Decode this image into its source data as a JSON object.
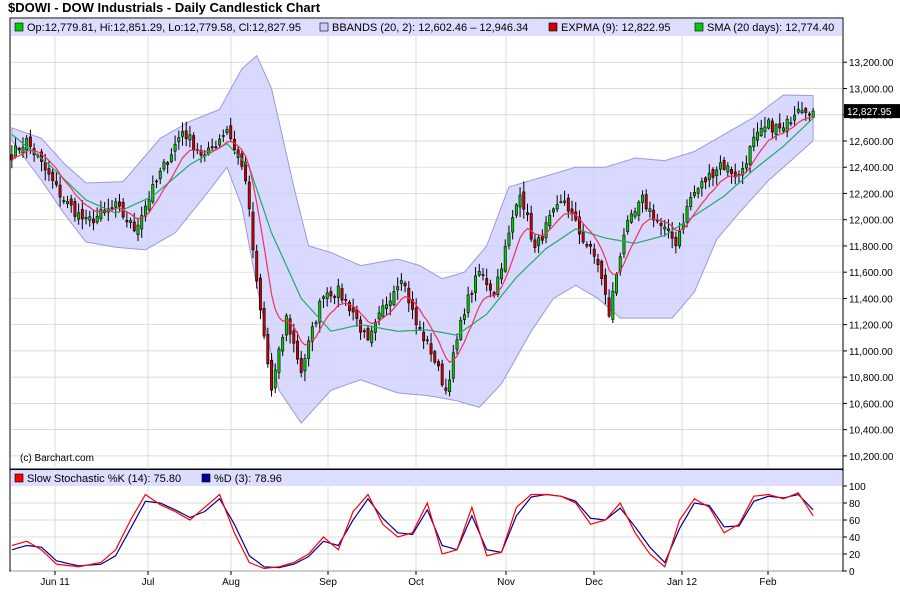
{
  "title": "$DOWI - DOW Industrials - Daily Candlestick Chart",
  "watermark": "(c) Barchart.com",
  "last_price_label": "12,827.95",
  "legends": {
    "ohlc": "Op:12,779.81, Hi:12,851.29, Lo:12,779.58, Cl:12,827.95",
    "bbands": "BBANDS (20, 2): 12,602.46 – 12,946.34",
    "expma": "EXPMA (9): 12,822.95",
    "sma": "SMA (20 days): 12,774.40",
    "stoch_k": "Slow Stochastic %K (14): 75.80",
    "stoch_d": "%D (3): 78.96"
  },
  "colors": {
    "up": "#00cc00",
    "down": "#cc0000",
    "band_fill": "#ccccff",
    "band_edge": "#9999dd",
    "expma": "#ee3355",
    "sma": "#22aa66",
    "stoch_k": "#ff0000",
    "stoch_d": "#000099"
  },
  "chart_data": [
    {
      "type": "candlestick",
      "y_axis_side": "right",
      "ylim": [
        10100,
        13400
      ],
      "y_ticks": [
        "13,200.00",
        "13,000.00",
        "12,800.00",
        "12,600.00",
        "12,400.00",
        "12,200.00",
        "12,000.00",
        "11,800.00",
        "11,600.00",
        "11,400.00",
        "11,200.00",
        "11,000.00",
        "10,800.00",
        "10,600.00",
        "10,400.00",
        "10,200.00"
      ],
      "x_ticks": [
        "Jun 11",
        "Jul",
        "Aug",
        "Sep",
        "Oct",
        "Nov",
        "Dec",
        "Jan 12",
        "Feb"
      ],
      "close_anchors": [
        [
          0,
          12500
        ],
        [
          4,
          12600
        ],
        [
          8,
          12420
        ],
        [
          14,
          12150
        ],
        [
          20,
          11980
        ],
        [
          28,
          12100
        ],
        [
          33,
          11930
        ],
        [
          40,
          12350
        ],
        [
          46,
          12680
        ],
        [
          52,
          12470
        ],
        [
          58,
          12700
        ],
        [
          63,
          12320
        ],
        [
          66,
          11500
        ],
        [
          70,
          10700
        ],
        [
          74,
          11250
        ],
        [
          78,
          10850
        ],
        [
          84,
          11450
        ],
        [
          88,
          11450
        ],
        [
          92,
          11300
        ],
        [
          96,
          11050
        ],
        [
          100,
          11320
        ],
        [
          105,
          11580
        ],
        [
          109,
          11200
        ],
        [
          113,
          11000
        ],
        [
          117,
          10700
        ],
        [
          122,
          11320
        ],
        [
          126,
          11600
        ],
        [
          130,
          11450
        ],
        [
          134,
          11880
        ],
        [
          137,
          12230
        ],
        [
          141,
          11770
        ],
        [
          145,
          12000
        ],
        [
          149,
          12150
        ],
        [
          153,
          11900
        ],
        [
          158,
          11670
        ],
        [
          161,
          11280
        ],
        [
          165,
          11900
        ],
        [
          170,
          12150
        ],
        [
          175,
          11950
        ],
        [
          179,
          11830
        ],
        [
          183,
          12170
        ],
        [
          187,
          12300
        ],
        [
          191,
          12430
        ],
        [
          196,
          12330
        ],
        [
          200,
          12600
        ],
        [
          204,
          12720
        ],
        [
          208,
          12680
        ],
        [
          212,
          12880
        ],
        [
          216,
          12828
        ]
      ],
      "sma_anchors": [
        [
          0,
          12650
        ],
        [
          10,
          12420
        ],
        [
          20,
          12150
        ],
        [
          28,
          12050
        ],
        [
          38,
          12180
        ],
        [
          48,
          12420
        ],
        [
          58,
          12580
        ],
        [
          64,
          12400
        ],
        [
          70,
          11900
        ],
        [
          78,
          11400
        ],
        [
          86,
          11150
        ],
        [
          94,
          11200
        ],
        [
          104,
          11150
        ],
        [
          112,
          11160
        ],
        [
          120,
          11120
        ],
        [
          128,
          11280
        ],
        [
          136,
          11560
        ],
        [
          144,
          11780
        ],
        [
          152,
          11930
        ],
        [
          160,
          11860
        ],
        [
          168,
          11820
        ],
        [
          176,
          11880
        ],
        [
          184,
          12030
        ],
        [
          192,
          12180
        ],
        [
          200,
          12380
        ],
        [
          208,
          12560
        ],
        [
          216,
          12774
        ]
      ],
      "bbands_upper_anchors": [
        [
          0,
          12700
        ],
        [
          8,
          12620
        ],
        [
          14,
          12430
        ],
        [
          20,
          12280
        ],
        [
          30,
          12290
        ],
        [
          40,
          12620
        ],
        [
          48,
          12750
        ],
        [
          56,
          12840
        ],
        [
          62,
          13150
        ],
        [
          66,
          13250
        ],
        [
          70,
          13000
        ],
        [
          76,
          12250
        ],
        [
          80,
          11800
        ],
        [
          86,
          11750
        ],
        [
          94,
          11650
        ],
        [
          104,
          11700
        ],
        [
          110,
          11650
        ],
        [
          116,
          11550
        ],
        [
          122,
          11600
        ],
        [
          128,
          11800
        ],
        [
          134,
          12250
        ],
        [
          140,
          12300
        ],
        [
          146,
          12350
        ],
        [
          152,
          12400
        ],
        [
          160,
          12400
        ],
        [
          168,
          12470
        ],
        [
          176,
          12450
        ],
        [
          184,
          12520
        ],
        [
          192,
          12650
        ],
        [
          200,
          12780
        ],
        [
          208,
          12950
        ],
        [
          216,
          12946
        ]
      ],
      "bbands_lower_anchors": [
        [
          0,
          12600
        ],
        [
          8,
          12300
        ],
        [
          14,
          12050
        ],
        [
          20,
          11830
        ],
        [
          28,
          11790
        ],
        [
          36,
          11770
        ],
        [
          44,
          11900
        ],
        [
          52,
          12180
        ],
        [
          58,
          12400
        ],
        [
          62,
          12100
        ],
        [
          66,
          11500
        ],
        [
          72,
          10700
        ],
        [
          78,
          10450
        ],
        [
          86,
          10700
        ],
        [
          94,
          10780
        ],
        [
          104,
          10680
        ],
        [
          112,
          10660
        ],
        [
          120,
          10620
        ],
        [
          126,
          10570
        ],
        [
          132,
          10750
        ],
        [
          140,
          11150
        ],
        [
          146,
          11400
        ],
        [
          152,
          11500
        ],
        [
          158,
          11400
        ],
        [
          164,
          11250
        ],
        [
          170,
          11250
        ],
        [
          178,
          11250
        ],
        [
          184,
          11450
        ],
        [
          190,
          11850
        ],
        [
          196,
          12050
        ],
        [
          204,
          12300
        ],
        [
          210,
          12450
        ],
        [
          216,
          12602
        ]
      ]
    },
    {
      "type": "line",
      "ylim": [
        0,
        100
      ],
      "y_ticks": [
        "100",
        "80",
        "60",
        "40",
        "20",
        "0"
      ],
      "series": [
        {
          "name": "%K",
          "anchors": [
            [
              0,
              30
            ],
            [
              4,
              35
            ],
            [
              8,
              25
            ],
            [
              12,
              8
            ],
            [
              18,
              5
            ],
            [
              24,
              10
            ],
            [
              28,
              25
            ],
            [
              32,
              60
            ],
            [
              36,
              90
            ],
            [
              40,
              78
            ],
            [
              44,
              70
            ],
            [
              48,
              60
            ],
            [
              52,
              75
            ],
            [
              56,
              90
            ],
            [
              60,
              45
            ],
            [
              64,
              10
            ],
            [
              68,
              3
            ],
            [
              72,
              5
            ],
            [
              76,
              10
            ],
            [
              80,
              20
            ],
            [
              84,
              40
            ],
            [
              88,
              25
            ],
            [
              92,
              70
            ],
            [
              96,
              90
            ],
            [
              100,
              55
            ],
            [
              104,
              40
            ],
            [
              108,
              45
            ],
            [
              112,
              80
            ],
            [
              116,
              20
            ],
            [
              120,
              25
            ],
            [
              124,
              75
            ],
            [
              128,
              18
            ],
            [
              132,
              22
            ],
            [
              136,
              75
            ],
            [
              140,
              90
            ],
            [
              144,
              90
            ],
            [
              148,
              88
            ],
            [
              152,
              80
            ],
            [
              156,
              55
            ],
            [
              160,
              60
            ],
            [
              164,
              80
            ],
            [
              168,
              45
            ],
            [
              172,
              20
            ],
            [
              176,
              5
            ],
            [
              180,
              60
            ],
            [
              184,
              85
            ],
            [
              188,
              75
            ],
            [
              192,
              45
            ],
            [
              196,
              55
            ],
            [
              200,
              88
            ],
            [
              204,
              90
            ],
            [
              208,
              85
            ],
            [
              212,
              92
            ],
            [
              216,
              65
            ],
            [
              220,
              75
            ],
            [
              224,
              92
            ],
            [
              228,
              70
            ],
            [
              232,
              76
            ]
          ]
        },
        {
          "name": "%D",
          "anchors": [
            [
              0,
              25
            ],
            [
              4,
              30
            ],
            [
              8,
              28
            ],
            [
              12,
              12
            ],
            [
              18,
              6
            ],
            [
              24,
              8
            ],
            [
              28,
              18
            ],
            [
              32,
              50
            ],
            [
              36,
              82
            ],
            [
              40,
              80
            ],
            [
              44,
              72
            ],
            [
              48,
              63
            ],
            [
              52,
              70
            ],
            [
              56,
              85
            ],
            [
              60,
              55
            ],
            [
              64,
              18
            ],
            [
              68,
              5
            ],
            [
              72,
              4
            ],
            [
              76,
              8
            ],
            [
              80,
              17
            ],
            [
              84,
              35
            ],
            [
              88,
              30
            ],
            [
              92,
              60
            ],
            [
              96,
              85
            ],
            [
              100,
              62
            ],
            [
              104,
              45
            ],
            [
              108,
              43
            ],
            [
              112,
              72
            ],
            [
              116,
              30
            ],
            [
              120,
              25
            ],
            [
              124,
              65
            ],
            [
              128,
              25
            ],
            [
              132,
              22
            ],
            [
              136,
              65
            ],
            [
              140,
              87
            ],
            [
              144,
              90
            ],
            [
              148,
              88
            ],
            [
              152,
              82
            ],
            [
              156,
              62
            ],
            [
              160,
              60
            ],
            [
              164,
              74
            ],
            [
              168,
              52
            ],
            [
              172,
              28
            ],
            [
              176,
              10
            ],
            [
              180,
              50
            ],
            [
              184,
              80
            ],
            [
              188,
              77
            ],
            [
              192,
              52
            ],
            [
              196,
              53
            ],
            [
              200,
              82
            ],
            [
              204,
              88
            ],
            [
              208,
              86
            ],
            [
              212,
              90
            ],
            [
              216,
              72
            ],
            [
              220,
              74
            ],
            [
              224,
              89
            ],
            [
              228,
              75
            ],
            [
              232,
              78
            ]
          ]
        }
      ]
    }
  ]
}
